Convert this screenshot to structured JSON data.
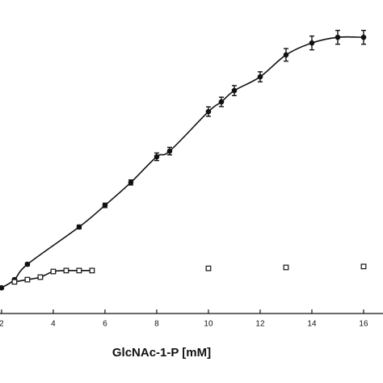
{
  "chart_data": {
    "type": "scatter",
    "x_label": "GlcNAc-1-P [mM]",
    "xlim": [
      1.94,
      16.75
    ],
    "xticks": [
      2,
      4,
      6,
      8,
      10,
      12,
      14,
      16
    ],
    "ylim": [
      0,
      100
    ],
    "series": [
      {
        "marker": "filled",
        "line": true,
        "color": "#111",
        "x": [
          2,
          2.5,
          3,
          5,
          6,
          7,
          8,
          8.5,
          10,
          10.5,
          11,
          12,
          13,
          14,
          15,
          16
        ],
        "values": [
          8.2,
          10.8,
          15.7,
          27.6,
          34.5,
          41.8,
          50.0,
          51.8,
          64.4,
          67.5,
          71.1,
          75.5,
          82.5,
          86.3,
          88.1,
          88.1
        ],
        "errors": [
          0.4,
          0.4,
          0.5,
          0.6,
          0.7,
          0.8,
          1.2,
          1.2,
          1.5,
          1.5,
          1.6,
          1.6,
          2.0,
          2.2,
          2.2,
          2.2
        ]
      },
      {
        "marker": "open",
        "line": true,
        "color": "#111",
        "x": [
          2.5,
          3,
          3.5,
          4,
          4.5,
          5,
          5.5
        ],
        "values": [
          10.1,
          10.8,
          11.6,
          13.4,
          13.7,
          13.7,
          13.7
        ]
      },
      {
        "marker": "open",
        "line": false,
        "color": "#111",
        "x": [
          10,
          13,
          16
        ],
        "values": [
          14.4,
          14.7,
          15.0
        ]
      }
    ]
  }
}
